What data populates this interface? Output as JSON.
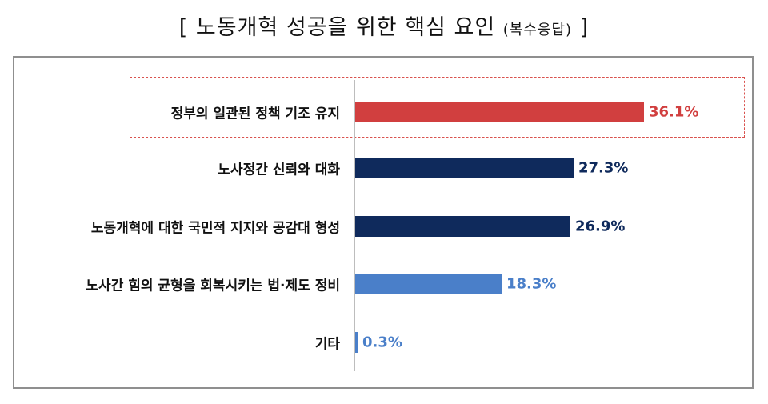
{
  "title": {
    "main": "[ 노동개혁 성공을 위한 핵심 요인",
    "sub": "(복수응답)",
    "close": "]"
  },
  "chart_data": {
    "type": "bar",
    "orientation": "horizontal",
    "categories": [
      "정부의 일관된 정책 기조 유지",
      "노사정간 신뢰와 대화",
      "노동개혁에 대한 국민적 지지와 공감대 형성",
      "노사간 힘의 균형을 회복시키는 법·제도 정비",
      "기타"
    ],
    "values": [
      36.1,
      27.3,
      26.9,
      18.3,
      0.3
    ],
    "value_labels": [
      "36.1%",
      "27.3%",
      "26.9%",
      "18.3%",
      "0.3%"
    ],
    "colors": [
      "#d13f3f",
      "#0f2a5c",
      "#0f2a5c",
      "#4a7fc9",
      "#4a7fc9"
    ],
    "label_colors": [
      "#d13f3f",
      "#0f2a5c",
      "#0f2a5c",
      "#4a7fc9",
      "#4a7fc9"
    ],
    "highlighted_category": "정부의 일관된 정책 기조 유지",
    "xlim": [
      0,
      40
    ],
    "grid": false,
    "legend": "none"
  }
}
